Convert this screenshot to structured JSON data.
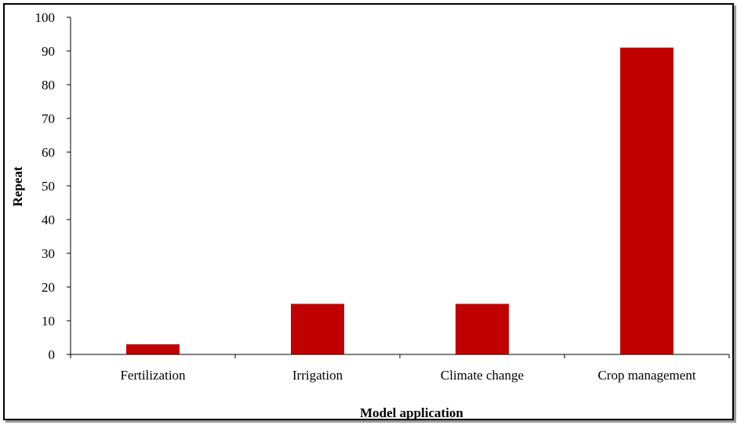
{
  "chart_data": {
    "type": "bar",
    "title": "",
    "xlabel": "Model application",
    "ylabel": "Repeat",
    "categories": [
      "Fertilization",
      "Irrigation",
      "Climate change",
      "Crop management"
    ],
    "values": [
      3,
      15,
      15,
      91
    ],
    "ylim": [
      0,
      100
    ],
    "yticks": [
      0,
      10,
      20,
      30,
      40,
      50,
      60,
      70,
      80,
      90,
      100
    ],
    "grid": false,
    "legend": "none",
    "bar_color": "#C00000",
    "axis_color": "#000000"
  }
}
